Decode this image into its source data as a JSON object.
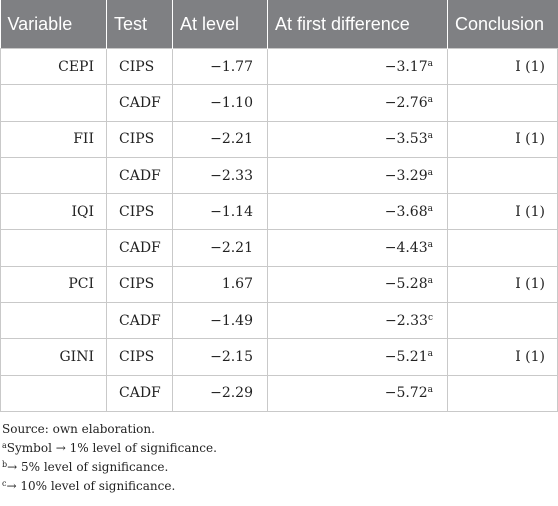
{
  "headers": [
    "Variable",
    "Test",
    "At level",
    "At first difference",
    "Conclusion"
  ],
  "rows": [
    {
      "variable": "CEPI",
      "test": "CIPS",
      "level": "−1.77",
      "first_diff": "−3.17",
      "sup": "a",
      "conclusion": "I (1)"
    },
    {
      "variable": "",
      "test": "CADF",
      "level": "−1.10",
      "first_diff": "−2.76",
      "sup": "a",
      "conclusion": ""
    },
    {
      "variable": "FII",
      "test": "CIPS",
      "level": "−2.21",
      "first_diff": "−3.53",
      "sup": "a",
      "conclusion": "I (1)"
    },
    {
      "variable": "",
      "test": "CADF",
      "level": "−2.33",
      "first_diff": "−3.29",
      "sup": "a",
      "conclusion": ""
    },
    {
      "variable": "IQI",
      "test": "CIPS",
      "level": "−1.14",
      "first_diff": "−3.68",
      "sup": "a",
      "conclusion": "I (1)"
    },
    {
      "variable": "",
      "test": "CADF",
      "level": "−2.21",
      "first_diff": "−4.43",
      "sup": "a",
      "conclusion": ""
    },
    {
      "variable": "PCI",
      "test": "CIPS",
      "level": "1.67",
      "first_diff": "−5.28",
      "sup": "a",
      "conclusion": "I (1)"
    },
    {
      "variable": "",
      "test": "CADF",
      "level": "−1.49",
      "first_diff": "−2.33",
      "sup": "c",
      "conclusion": ""
    },
    {
      "variable": "GINI",
      "test": "CIPS",
      "level": "−2.15",
      "first_diff": "−5.21",
      "sup": "a",
      "conclusion": "I (1)"
    },
    {
      "variable": "",
      "test": "CADF",
      "level": "−2.29",
      "first_diff": "−5.72",
      "sup": "a",
      "conclusion": ""
    }
  ],
  "notes": {
    "source": "Source: own elaboration.",
    "a_mark": "a",
    "a_text": "Symbol → 1% level of significance.",
    "b_mark": "b",
    "b_text": "→ 5% level of significance.",
    "c_mark": "c",
    "c_text": "→ 10% level of significance."
  }
}
